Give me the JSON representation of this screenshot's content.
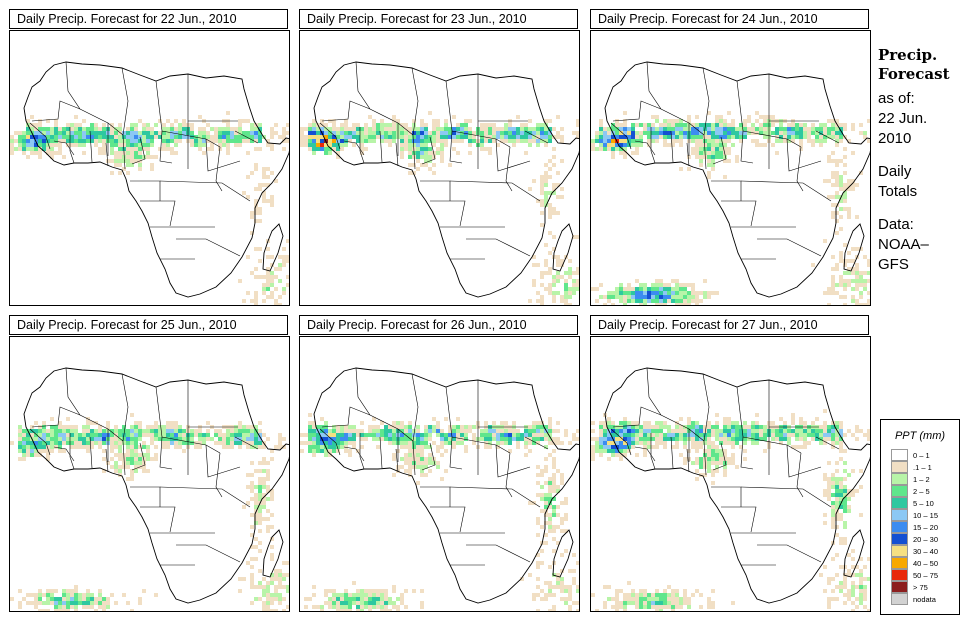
{
  "panels": [
    {
      "title": "Daily Precip. Forecast for  22 Jun., 2010",
      "day": 0
    },
    {
      "title": "Daily Precip. Forecast for  23 Jun., 2010",
      "day": 1
    },
    {
      "title": "Daily Precip. Forecast for  24 Jun., 2010",
      "day": 2
    },
    {
      "title": "Daily Precip. Forecast for  25 Jun., 2010",
      "day": 3
    },
    {
      "title": "Daily Precip. Forecast for  26 Jun., 2010",
      "day": 4
    },
    {
      "title": "Daily Precip. Forecast for  27 Jun., 2010",
      "day": 5
    }
  ],
  "side": {
    "heading1": "Precip.",
    "heading2": "Forecast",
    "line1": "as of:",
    "line2": "22 Jun.",
    "line3": "2010",
    "line4": "Daily",
    "line5": "Totals",
    "line6": "Data:",
    "line7": "NOAA–",
    "line8": "GFS"
  },
  "legend": {
    "title": "PPT (mm)",
    "items": [
      {
        "label": "0 – 1",
        "color": "#ffffff"
      },
      {
        "label": ".1 – 1",
        "color": "#f1dfc4"
      },
      {
        "label": "1 – 2",
        "color": "#b8f4a8"
      },
      {
        "label": "2 – 5",
        "color": "#5fe68c"
      },
      {
        "label": "5 – 10",
        "color": "#2ec8a0"
      },
      {
        "label": "10 – 15",
        "color": "#8cc8f4"
      },
      {
        "label": "15 – 20",
        "color": "#3c8cf0"
      },
      {
        "label": "20 – 30",
        "color": "#1450d2"
      },
      {
        "label": "30 – 40",
        "color": "#f6e082"
      },
      {
        "label": "40 – 50",
        "color": "#f8a800"
      },
      {
        "label": "50 – 75",
        "color": "#e8280a"
      },
      {
        "label": "> 75",
        "color": "#8c1e1e"
      },
      {
        "label": "nodata",
        "color": "#d2d2d2"
      }
    ]
  }
}
